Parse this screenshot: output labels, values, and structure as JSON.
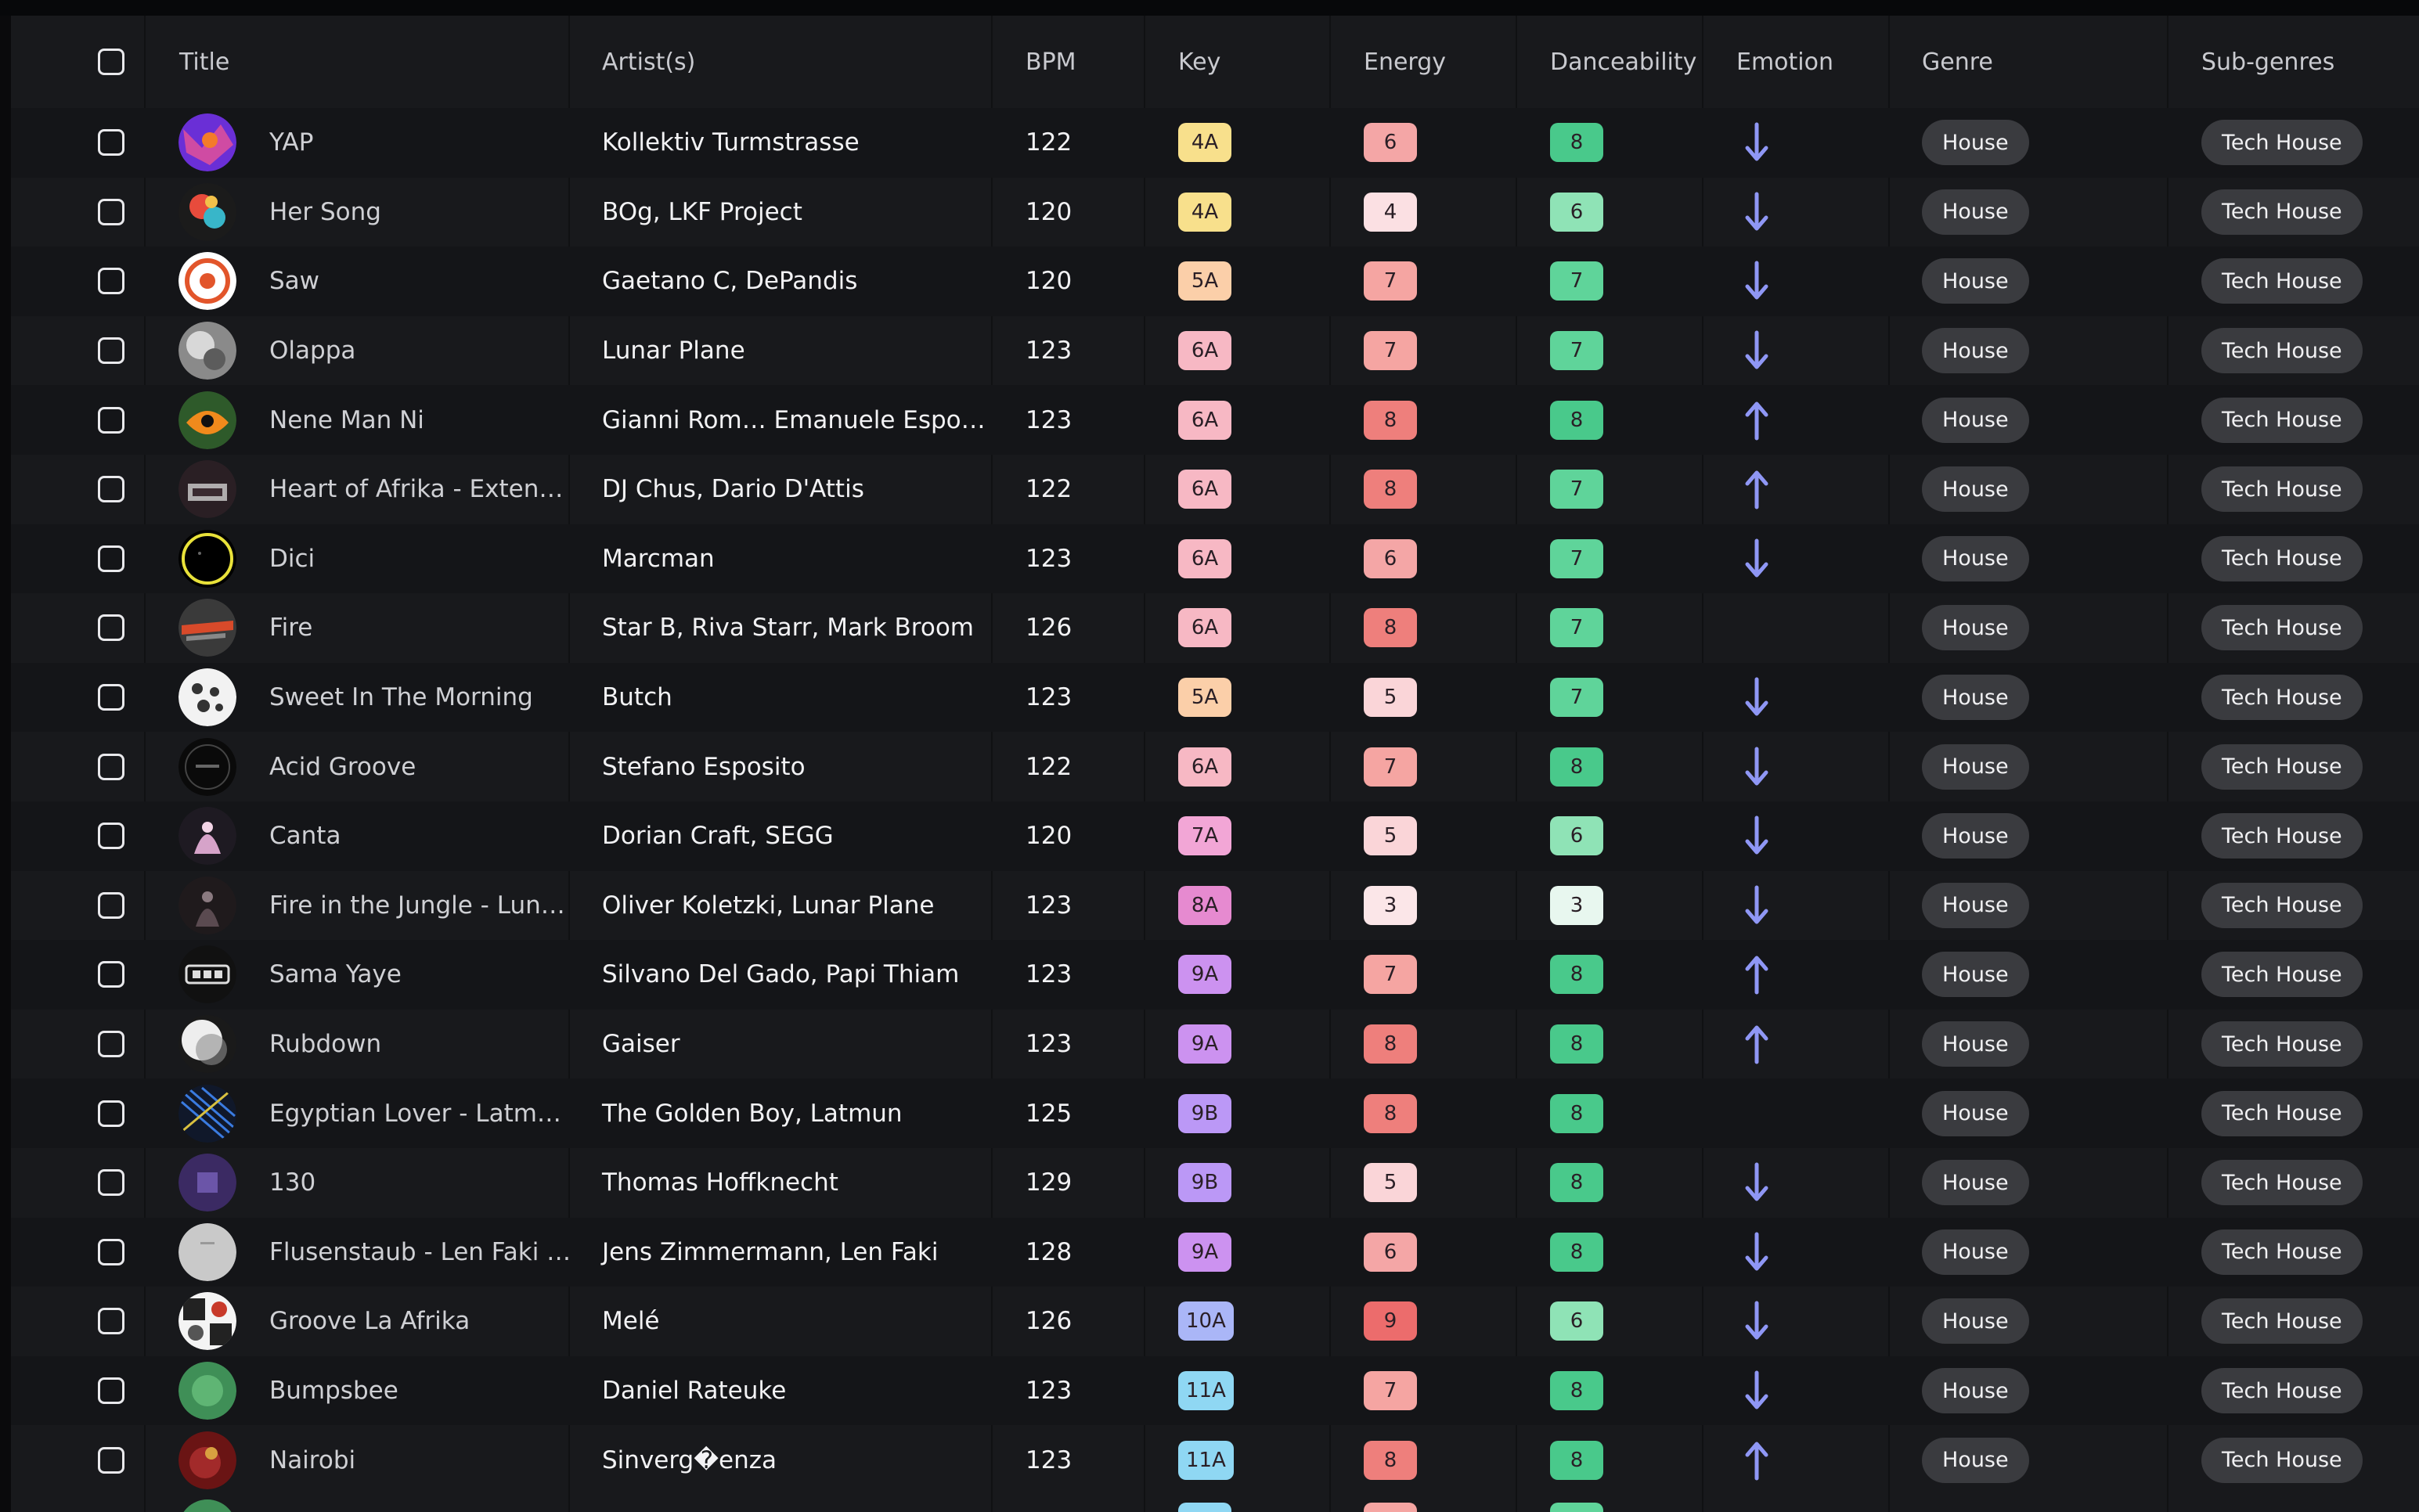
{
  "columns": {
    "title": "Title",
    "artists": "Artist(s)",
    "bpm": "BPM",
    "key": "Key",
    "energy": "Energy",
    "danceability": "Danceability",
    "emotion": "Emotion",
    "genre": "Genre",
    "subgenres": "Sub-genres"
  },
  "colors": {
    "emotion_arrow": "#8f97f5",
    "energy_scale": {
      "3": "#fbe6e8",
      "4": "#fbe0e3",
      "5": "#fad5d8",
      "6": "#f4a6a6",
      "7": "#f5a5a2",
      "8": "#ee7f7c",
      "9": "#ec6c6c"
    },
    "dance_scale": {
      "3": "#e8f7ef",
      "6": "#8fe3b6",
      "7": "#5fd49a",
      "8": "#49c98b"
    }
  },
  "tracks": [
    {
      "title": "YAP",
      "artists": "Kollektiv Turmstrasse",
      "bpm": "122",
      "key": "4A",
      "key_color": "#f8e08c",
      "energy": "6",
      "danceability": "8",
      "emotion": "down",
      "genre": "House",
      "subgenre": "Tech House",
      "art": "purple-cover-icon"
    },
    {
      "title": "Her Song",
      "artists": "BOg,  LKF Project",
      "bpm": "120",
      "key": "4A",
      "key_color": "#f8e08c",
      "energy": "4",
      "danceability": "6",
      "emotion": "down",
      "genre": "House",
      "subgenre": "Tech House",
      "art": "colorful-cover-icon"
    },
    {
      "title": "Saw",
      "artists": "Gaetano C,  DePandis",
      "bpm": "120",
      "key": "5A",
      "key_color": "#fbcfa9",
      "energy": "7",
      "danceability": "7",
      "emotion": "down",
      "genre": "House",
      "subgenre": "Tech House",
      "art": "orange-ring-cover-icon"
    },
    {
      "title": "Olappa",
      "artists": "Lunar Plane",
      "bpm": "123",
      "key": "6A",
      "key_color": "#f7b8c4",
      "energy": "7",
      "danceability": "7",
      "emotion": "down",
      "genre": "House",
      "subgenre": "Tech House",
      "art": "grey-cover-icon"
    },
    {
      "title": "Nene Man Ni",
      "artists": "Gianni Rom…   Emanuele Espo…",
      "bpm": "123",
      "key": "6A",
      "key_color": "#f7b8c4",
      "energy": "8",
      "danceability": "8",
      "emotion": "up",
      "genre": "House",
      "subgenre": "Tech House",
      "art": "jungle-cover-icon"
    },
    {
      "title": "Heart of Afrika - Exten…",
      "artists": "DJ Chus,  Dario D'Attis",
      "bpm": "122",
      "key": "6A",
      "key_color": "#f7b8c4",
      "energy": "8",
      "danceability": "7",
      "emotion": "up",
      "genre": "House",
      "subgenre": "Tech House",
      "art": "dark-pattern-cover-icon"
    },
    {
      "title": "Dici",
      "artists": "Marcman",
      "bpm": "123",
      "key": "6A",
      "key_color": "#f7b8c4",
      "energy": "6",
      "danceability": "7",
      "emotion": "down",
      "genre": "House",
      "subgenre": "Tech House",
      "art": "yellow-ring-cover-icon"
    },
    {
      "title": "Fire",
      "artists": "Star B,  Riva Starr,  Mark Broom",
      "bpm": "126",
      "key": "6A",
      "key_color": "#f7b8c4",
      "energy": "8",
      "danceability": "7",
      "emotion": "",
      "genre": "House",
      "subgenre": "Tech House",
      "art": "red-streak-cover-icon"
    },
    {
      "title": "Sweet In The Morning",
      "artists": "Butch",
      "bpm": "123",
      "key": "5A",
      "key_color": "#fbcfa9",
      "energy": "5",
      "danceability": "7",
      "emotion": "down",
      "genre": "House",
      "subgenre": "Tech House",
      "art": "white-pattern-cover-icon"
    },
    {
      "title": "Acid Groove",
      "artists": "Stefano Esposito",
      "bpm": "122",
      "key": "6A",
      "key_color": "#f7b8c4",
      "energy": "7",
      "danceability": "8",
      "emotion": "down",
      "genre": "House",
      "subgenre": "Tech House",
      "art": "black-cover-icon"
    },
    {
      "title": "Canta",
      "artists": "Dorian Craft,  SEGG",
      "bpm": "120",
      "key": "7A",
      "key_color": "#f2a6d6",
      "energy": "5",
      "danceability": "6",
      "emotion": "down",
      "genre": "House",
      "subgenre": "Tech House",
      "art": "pink-figure-cover-icon"
    },
    {
      "title": "Fire in the Jungle - Lun…",
      "artists": "Oliver Koletzki,  Lunar Plane",
      "bpm": "123",
      "key": "8A",
      "key_color": "#e68ad0",
      "energy": "3",
      "danceability": "3",
      "emotion": "down",
      "genre": "House",
      "subgenre": "Tech House",
      "art": "dark-figure-cover-icon"
    },
    {
      "title": "Sama Yaye",
      "artists": "Silvano Del Gado,  Papi Thiam",
      "bpm": "123",
      "key": "9A",
      "key_color": "#cc92f0",
      "energy": "7",
      "danceability": "8",
      "emotion": "up",
      "genre": "House",
      "subgenre": "Tech House",
      "art": "logo-cover-icon"
    },
    {
      "title": "Rubdown",
      "artists": "Gaiser",
      "bpm": "123",
      "key": "9A",
      "key_color": "#cc92f0",
      "energy": "8",
      "danceability": "8",
      "emotion": "up",
      "genre": "House",
      "subgenre": "Tech House",
      "art": "white-sphere-cover-icon"
    },
    {
      "title": "Egyptian Lover - Latm…",
      "artists": "The Golden Boy,  Latmun",
      "bpm": "125",
      "key": "9B",
      "key_color": "#bb98f6",
      "energy": "8",
      "danceability": "8",
      "emotion": "",
      "genre": "House",
      "subgenre": "Tech House",
      "art": "blue-lines-cover-icon"
    },
    {
      "title": "130",
      "artists": "Thomas Hoffknecht",
      "bpm": "129",
      "key": "9B",
      "key_color": "#bb98f6",
      "energy": "5",
      "danceability": "8",
      "emotion": "down",
      "genre": "House",
      "subgenre": "Tech House",
      "art": "violet-cover-icon"
    },
    {
      "title": "Flusenstaub - Len Faki …",
      "artists": "Jens Zimmermann,  Len Faki",
      "bpm": "128",
      "key": "9A",
      "key_color": "#cc92f0",
      "energy": "6",
      "danceability": "8",
      "emotion": "down",
      "genre": "House",
      "subgenre": "Tech House",
      "art": "light-grey-cover-icon"
    },
    {
      "title": "Groove La Afrika",
      "artists": "Melé",
      "bpm": "126",
      "key": "10A",
      "key_color": "#aab6f7",
      "energy": "9",
      "danceability": "6",
      "emotion": "down",
      "genre": "House",
      "subgenre": "Tech House",
      "art": "collage-cover-icon"
    },
    {
      "title": "Bumpsbee",
      "artists": "Daniel Rateuke",
      "bpm": "123",
      "key": "11A",
      "key_color": "#8fd7f3",
      "energy": "7",
      "danceability": "8",
      "emotion": "down",
      "genre": "House",
      "subgenre": "Tech House",
      "art": "green-cover-icon"
    },
    {
      "title": "Nairobi",
      "artists": "Sinverg�enza",
      "bpm": "123",
      "key": "11A",
      "key_color": "#8fd7f3",
      "energy": "8",
      "danceability": "8",
      "emotion": "up",
      "genre": "House",
      "subgenre": "Tech House",
      "art": "red-cover-icon"
    }
  ]
}
